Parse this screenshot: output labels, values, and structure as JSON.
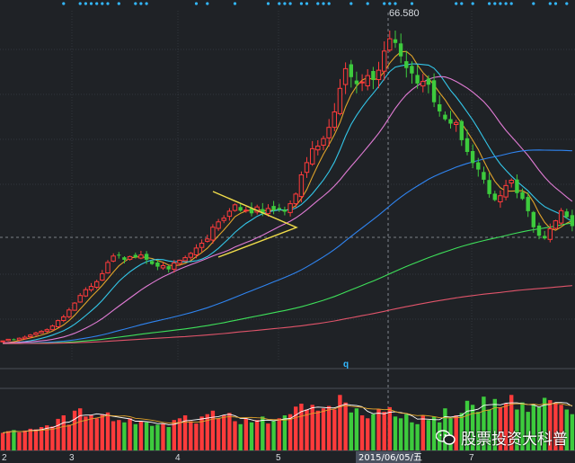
{
  "chart_data": {
    "type": "candlestick",
    "peak_label": "66.580",
    "cursor_date": "2015/06/05/五",
    "cursor_marker": "q",
    "x_ticks": [
      "2",
      "3",
      "4",
      "5",
      "7"
    ],
    "watermark": "股票投资大科普",
    "colors": {
      "up": "#ff3b3b",
      "down": "#3dcb3d",
      "grid": "#3a3f46",
      "bg": "#1f2226",
      "ma5": "#e0a32a",
      "ma10": "#33c6e8",
      "ma20": "#e07bd4",
      "ma60": "#2f84f0",
      "ma120": "#3ee05a",
      "ma250": "#e0546a",
      "triangle": "#f0dc4a",
      "markers": "#33b8ff"
    },
    "closes": [
      8.5,
      8.8,
      8.7,
      9.0,
      9.2,
      9.6,
      10.0,
      10.3,
      10.6,
      11.3,
      12.3,
      13.0,
      14.3,
      15.6,
      17.0,
      18.1,
      18.7,
      19.6,
      21.1,
      23.2,
      24.4,
      24.5,
      23.7,
      24.3,
      24.2,
      24.6,
      23.7,
      22.9,
      22.4,
      22.6,
      21.9,
      23.1,
      23.6,
      24.1,
      24.9,
      25.9,
      26.8,
      27.6,
      29.8,
      30.8,
      31.5,
      32.8,
      34.0,
      32.9,
      33.0,
      32.4,
      33.6,
      32.4,
      33.3,
      33.0,
      33.1,
      32.7,
      34.2,
      36.0,
      39.6,
      41.9,
      44.5,
      45.0,
      46.4,
      48.5,
      51.4,
      55.8,
      59.5,
      57.9,
      56.6,
      57.0,
      58.2,
      57.4,
      59.2,
      62.8,
      65.1,
      64.3,
      61.8,
      59.6,
      58.6,
      56.7,
      57.1,
      56.5,
      53.2,
      51.5,
      50.0,
      49.2,
      49.4,
      46.1,
      43.9,
      41.8,
      40.6,
      38.7,
      36.0,
      34.9,
      35.7,
      37.6,
      38.6,
      36.2,
      35.1,
      32.8,
      29.8,
      28.2,
      27.7,
      29.5,
      31.0,
      32.9,
      31.7,
      30.0
    ],
    "volumes": [
      0.3,
      0.33,
      0.35,
      0.31,
      0.34,
      0.37,
      0.36,
      0.4,
      0.43,
      0.41,
      0.54,
      0.6,
      0.44,
      0.68,
      0.72,
      0.58,
      0.6,
      0.55,
      0.62,
      0.65,
      0.5,
      0.52,
      0.48,
      0.55,
      0.45,
      0.5,
      0.48,
      0.42,
      0.44,
      0.46,
      0.4,
      0.52,
      0.55,
      0.6,
      0.5,
      0.46,
      0.58,
      0.62,
      0.68,
      0.55,
      0.6,
      0.64,
      0.5,
      0.45,
      0.55,
      0.48,
      0.52,
      0.58,
      0.46,
      0.5,
      0.55,
      0.6,
      0.62,
      0.75,
      0.8,
      0.7,
      0.78,
      0.68,
      0.72,
      0.76,
      0.7,
      0.95,
      0.82,
      0.65,
      0.72,
      0.6,
      0.55,
      0.62,
      0.7,
      0.66,
      0.74,
      0.58,
      0.55,
      0.62,
      0.48,
      0.45,
      0.6,
      0.52,
      0.58,
      0.48,
      0.72,
      0.55,
      0.6,
      0.64,
      0.85,
      0.78,
      0.66,
      0.92,
      0.7,
      0.88,
      0.74,
      0.8,
      0.95,
      0.7,
      0.82,
      0.66,
      0.78,
      0.74,
      0.9,
      0.86,
      0.82,
      0.78,
      0.7,
      0.62
    ],
    "ylim": [
      5,
      70
    ],
    "vol_max": 1.0
  }
}
